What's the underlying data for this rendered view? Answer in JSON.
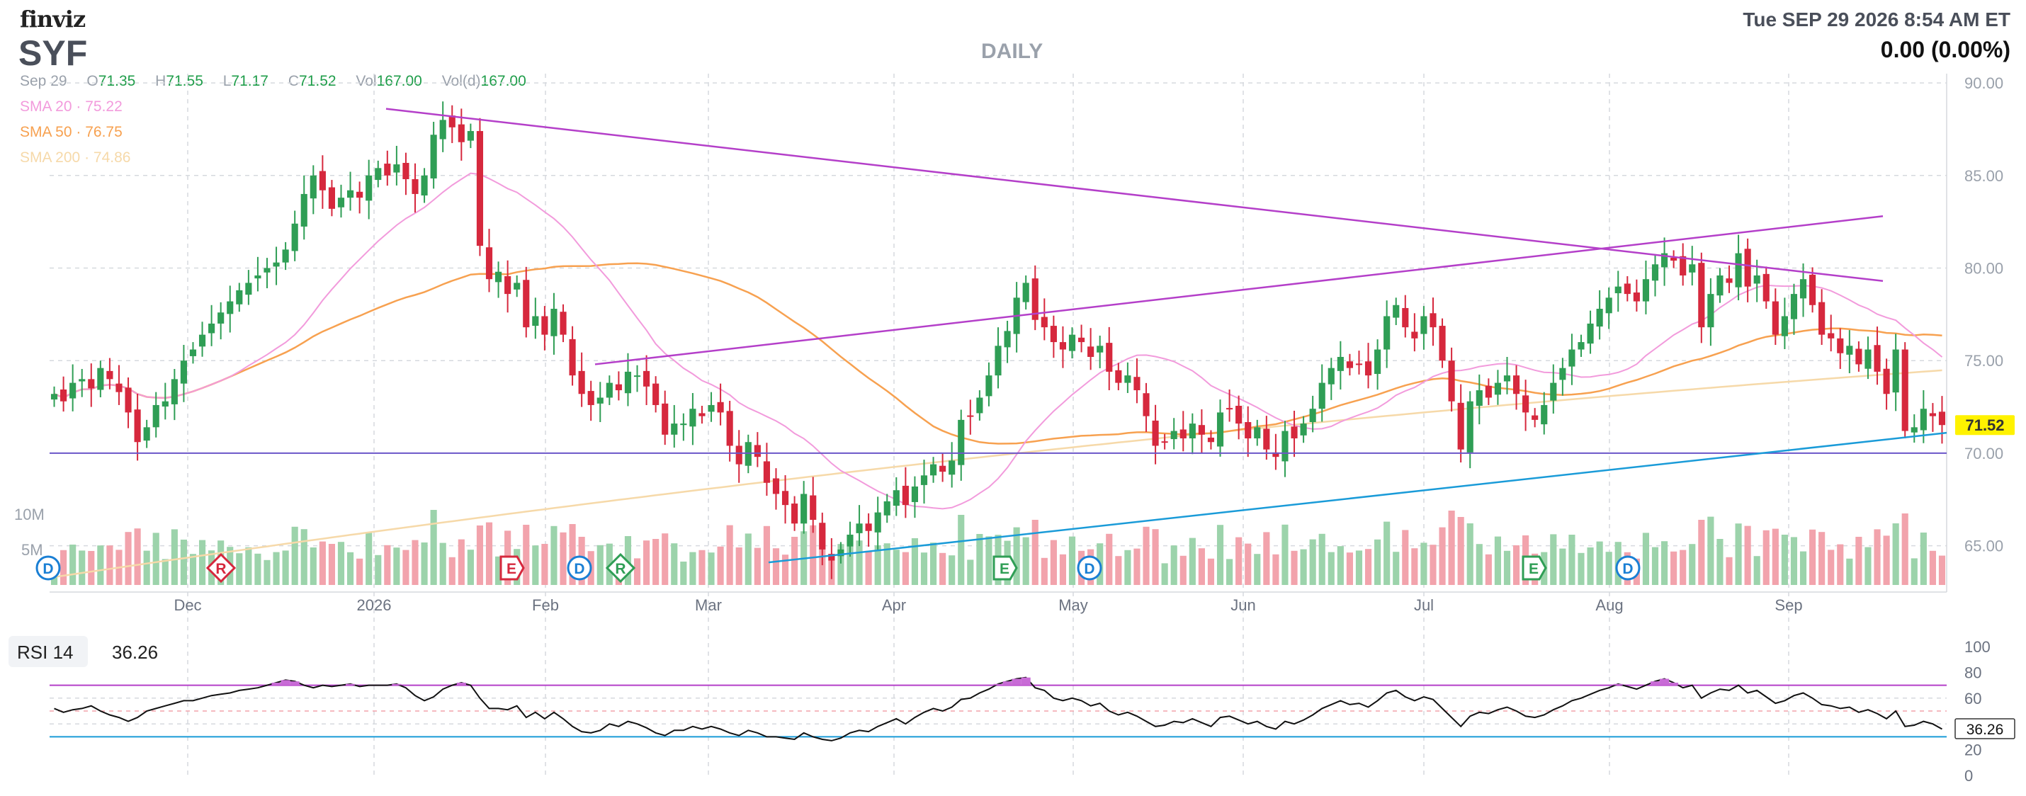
{
  "header": {
    "logo": "finviz",
    "ticker": "SYF",
    "period": "DAILY",
    "datetime": "Tue SEP 29 2026 8:54 AM ET",
    "change": "0.00 (0.00%)"
  },
  "ohlc": {
    "date": "Sep 29",
    "open_label": "O",
    "open": "71.35",
    "high_label": "H",
    "high": "71.55",
    "low_label": "L",
    "low": "71.17",
    "close_label": "C",
    "close": "71.52",
    "vol_label": "Vol",
    "vol": "167.00",
    "vold_label": "Vol(d)",
    "vold": "167.00"
  },
  "sma": [
    {
      "label": "SMA 20",
      "value": "75.22",
      "color": "#f29bdc"
    },
    {
      "label": "SMA 50",
      "value": "76.75",
      "color": "#f7a150"
    },
    {
      "label": "SMA 200",
      "value": "74.86",
      "color": "#f6d9a9"
    }
  ],
  "rsi": {
    "label": "RSI 14",
    "value": "36.26"
  },
  "colors": {
    "up": "#2f9e55",
    "down": "#d6283d",
    "vol_up": "#9cd3ab",
    "vol_down": "#f2a3ac",
    "trend_purple": "#b43fc9",
    "trend_blue": "#1a9bd8",
    "support": "#6b56c9"
  },
  "chart_data": {
    "type": "candlestick",
    "price_axis": {
      "ticks": [
        "90.00",
        "85.00",
        "80.00",
        "75.00",
        "70.00",
        "65.00"
      ],
      "values": [
        90,
        85,
        80,
        75,
        70,
        65
      ],
      "ylim": [
        62.5,
        90.5
      ]
    },
    "last_price_label": "71.52",
    "volume_axis": {
      "ticks": [
        "10M",
        "5M"
      ]
    },
    "x_labels": [
      "Dec",
      "2026",
      "Feb",
      "Mar",
      "Apr",
      "May",
      "Jun",
      "Jul",
      "Aug",
      "Sep"
    ],
    "rsi_axis": {
      "ticks": [
        "100",
        "80",
        "60",
        "40",
        "20",
        "0"
      ],
      "values": [
        100,
        80,
        60,
        40,
        20,
        0
      ],
      "overbought": 70,
      "oversold": 30
    },
    "events": [
      {
        "letter": "D",
        "type": "dividend"
      },
      {
        "letter": "R",
        "type": "revision"
      },
      {
        "letter": "E",
        "type": "earnings"
      },
      {
        "letter": "D",
        "type": "dividend"
      },
      {
        "letter": "R",
        "type": "revision"
      },
      {
        "letter": "E",
        "type": "earnings"
      },
      {
        "letter": "D",
        "type": "dividend"
      },
      {
        "letter": "E",
        "type": "earnings"
      },
      {
        "letter": "D",
        "type": "dividend"
      }
    ],
    "closes": [
      73.2,
      72.8,
      73.8,
      74.0,
      73.5,
      74.6,
      74.0,
      73.3,
      72.2,
      70.6,
      71.4,
      72.6,
      72.8,
      74.0,
      75.0,
      75.6,
      76.4,
      77.0,
      77.6,
      78.2,
      78.8,
      79.2,
      79.6,
      80.0,
      80.3,
      81.0,
      82.4,
      84.0,
      85.0,
      84.2,
      83.2,
      83.8,
      84.2,
      83.8,
      85.0,
      85.4,
      85.0,
      85.6,
      84.8,
      84.0,
      85.0,
      87.2,
      88.0,
      87.6,
      86.8,
      87.4,
      81.2,
      79.4,
      79.8,
      78.6,
      79.2,
      76.8,
      77.4,
      76.4,
      77.8,
      76.4,
      74.2,
      73.2,
      72.6,
      73.0,
      73.8,
      73.4,
      74.4,
      74.2,
      73.6,
      72.6,
      71.0,
      71.6,
      71.6,
      72.4,
      72.0,
      72.6,
      72.2,
      70.4,
      69.4,
      70.6,
      69.8,
      68.4,
      67.8,
      67.2,
      66.2,
      67.8,
      66.4,
      64.8,
      64.2,
      64.8,
      65.6,
      66.2,
      65.8,
      66.8,
      67.4,
      68.0,
      67.2,
      68.2,
      68.8,
      69.4,
      69.0,
      69.6,
      71.8,
      72.0,
      73.0,
      74.2,
      75.8,
      76.6,
      78.4,
      79.2,
      77.2,
      76.8,
      76.0,
      75.6,
      76.4,
      76.0,
      75.2,
      75.8,
      74.4,
      73.8,
      74.2,
      73.4,
      72.0,
      70.4,
      70.6,
      71.2,
      70.8,
      71.6,
      71.0,
      70.6,
      72.2,
      72.4,
      71.6,
      70.8,
      71.4,
      70.2,
      69.8,
      71.2,
      70.8,
      71.6,
      72.4,
      73.8,
      74.6,
      75.2,
      74.6,
      74.8,
      74.2,
      75.6,
      77.4,
      78.0,
      76.8,
      76.2,
      77.4,
      76.8,
      75.0,
      72.8,
      70.2,
      72.8,
      73.4,
      73.0,
      73.8,
      74.2,
      73.2,
      72.2,
      71.8,
      72.6,
      73.8,
      74.6,
      75.6,
      76.0,
      77.0,
      77.8,
      78.4,
      79.0,
      78.6,
      78.2,
      79.4,
      80.2,
      80.8,
      80.4,
      79.6,
      80.2,
      76.8,
      78.6,
      79.6,
      79.2,
      80.8,
      79.0,
      79.6,
      78.2,
      76.4,
      77.4,
      78.6,
      79.4,
      78.0,
      76.4,
      76.2,
      75.4,
      75.8,
      74.8,
      75.6,
      74.4,
      73.2,
      75.6,
      71.2,
      71.4,
      72.4,
      72.0,
      71.52
    ],
    "rsi_values": [
      52,
      49,
      51,
      52,
      54,
      50,
      47,
      45,
      42,
      45,
      50,
      52,
      54,
      56,
      58,
      58,
      60,
      62,
      63,
      64,
      66,
      67,
      68,
      70,
      72,
      74,
      73,
      70,
      68,
      70,
      69,
      70,
      71,
      69,
      70,
      70,
      70,
      71,
      68,
      62,
      58,
      61,
      67,
      70,
      72,
      70,
      60,
      52,
      52,
      51,
      54,
      45,
      49,
      44,
      49,
      44,
      38,
      34,
      33,
      35,
      40,
      38,
      42,
      40,
      37,
      33,
      31,
      35,
      35,
      38,
      36,
      38,
      36,
      33,
      31,
      35,
      33,
      30,
      30,
      29,
      28,
      33,
      30,
      28,
      27,
      29,
      33,
      35,
      34,
      38,
      41,
      44,
      40,
      45,
      49,
      52,
      50,
      53,
      59,
      60,
      64,
      67,
      71,
      73,
      75,
      76,
      68,
      66,
      60,
      58,
      60,
      58,
      54,
      56,
      50,
      47,
      49,
      46,
      42,
      38,
      39,
      42,
      41,
      44,
      41,
      38,
      45,
      46,
      43,
      40,
      42,
      38,
      36,
      42,
      40,
      43,
      47,
      52,
      55,
      58,
      55,
      56,
      53,
      58,
      64,
      66,
      61,
      58,
      61,
      59,
      52,
      45,
      38,
      46,
      49,
      48,
      51,
      53,
      50,
      46,
      45,
      47,
      51,
      54,
      58,
      60,
      63,
      66,
      68,
      71,
      69,
      67,
      70,
      73,
      75,
      72,
      68,
      70,
      60,
      64,
      67,
      66,
      70,
      64,
      66,
      61,
      56,
      58,
      62,
      64,
      60,
      55,
      54,
      52,
      53,
      49,
      51,
      48,
      44,
      50,
      38,
      39,
      42,
      40,
      36
    ]
  }
}
